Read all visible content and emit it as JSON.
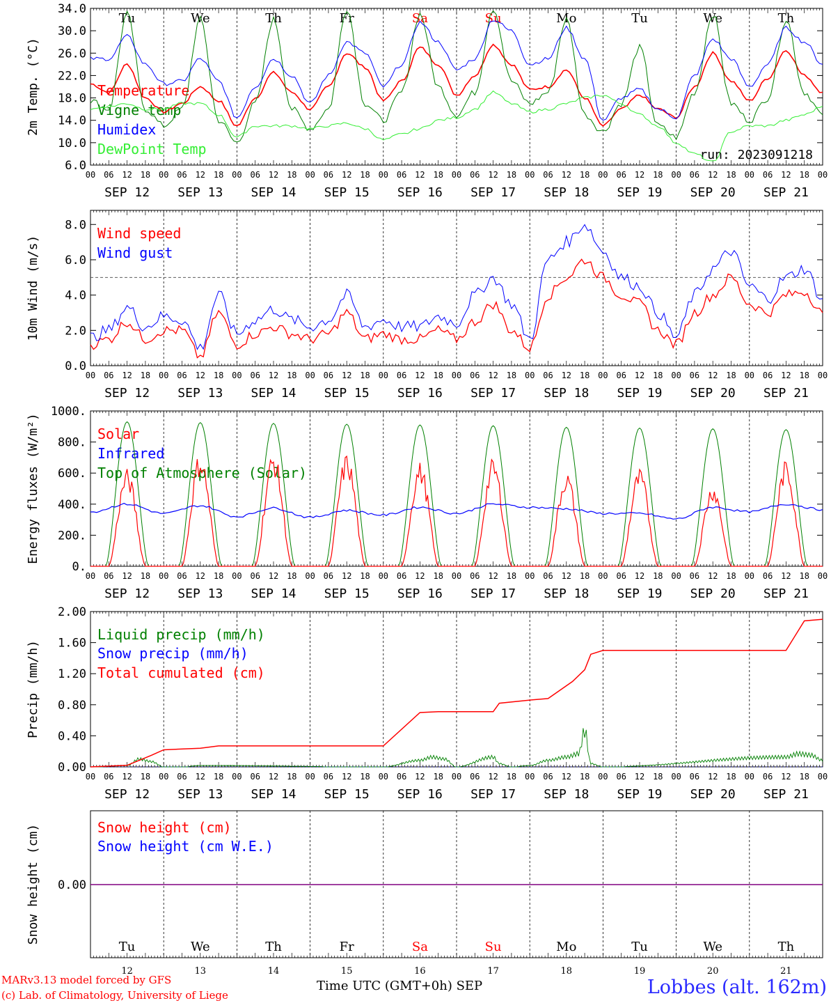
{
  "colors": {
    "red": "#ff0000",
    "green": "#008000",
    "blue": "#0000ff",
    "lightgreen": "#33ee33",
    "purple": "#800080",
    "weekend": "#ff0000"
  },
  "run_label": "run: 2023091218",
  "footer": {
    "credit1": "MARv3.13 model forced by GFS",
    "credit2": "(c) Lab. of Climatology, University of Liege",
    "xlabel": "Time UTC (GMT+0h) SEP",
    "station": "Lobbes (alt. 162m)"
  },
  "days": {
    "labels": [
      "SEP 12",
      "SEP 13",
      "SEP 14",
      "SEP 15",
      "SEP 16",
      "SEP 17",
      "SEP 18",
      "SEP 19",
      "SEP 20",
      "SEP 21"
    ],
    "weekday": [
      "Tu",
      "We",
      "Th",
      "Fr",
      "Sa",
      "Su",
      "Mo",
      "Tu",
      "We",
      "Th"
    ],
    "weekend": [
      false,
      false,
      false,
      false,
      true,
      true,
      false,
      false,
      false,
      false
    ],
    "numbers": [
      "12",
      "13",
      "14",
      "15",
      "16",
      "17",
      "18",
      "19",
      "20",
      "21"
    ],
    "hour_ticks": [
      "00",
      "06",
      "12",
      "18"
    ]
  },
  "chart_data": [
    {
      "type": "line",
      "ylabel": "2m Temp. (°C)",
      "ylim": [
        6,
        34
      ],
      "yticks": [
        "6.0",
        "10.0",
        "14.0",
        "18.0",
        "22.0",
        "26.0",
        "30.0",
        "34.0"
      ],
      "ytick_values": [
        6,
        10,
        14,
        18,
        22,
        26,
        30,
        34
      ],
      "x_unit": "hours since SEP 12 00 UTC",
      "series": [
        {
          "name": "Temperature",
          "color": "#ff0000",
          "x": [
            0,
            6,
            12,
            18,
            24,
            30,
            36,
            42,
            48,
            54,
            60,
            66,
            72,
            78,
            84,
            90,
            96,
            102,
            108,
            114,
            120,
            126,
            132,
            138,
            144,
            150,
            156,
            162,
            168,
            174,
            180,
            186,
            192,
            198,
            204,
            210,
            216,
            222,
            228,
            234,
            240
          ],
          "y": [
            20.5,
            19,
            24,
            18,
            15.5,
            17,
            20,
            17.5,
            13,
            18,
            22.5,
            19,
            16,
            20,
            26,
            23.5,
            17.5,
            21,
            27,
            24,
            18.5,
            22,
            27.5,
            24,
            19.5,
            20,
            23,
            18,
            13,
            16,
            18.5,
            16,
            14.5,
            20,
            26,
            21,
            17.5,
            21.5,
            26.5,
            22,
            19
          ]
        },
        {
          "name": "Vigne temp",
          "color": "#008000",
          "x": [
            0,
            6,
            12,
            18,
            24,
            30,
            36,
            42,
            48,
            54,
            60,
            66,
            72,
            78,
            84,
            90,
            96,
            102,
            108,
            114,
            120,
            126,
            132,
            138,
            144,
            150,
            156,
            162,
            168,
            174,
            180,
            186,
            192,
            198,
            204,
            210,
            216,
            222,
            228,
            234,
            240
          ],
          "y": [
            17.5,
            16,
            33,
            16,
            13,
            16,
            32,
            14,
            10,
            17,
            32,
            16,
            12.5,
            16,
            34,
            17,
            14,
            19,
            33,
            20,
            15,
            19,
            34,
            21,
            17,
            19,
            32,
            15,
            12,
            17,
            27,
            13,
            11,
            19,
            33,
            17,
            14,
            18,
            32,
            19,
            15
          ]
        },
        {
          "name": "Humidex",
          "color": "#0000ff",
          "x": [
            0,
            6,
            12,
            18,
            24,
            30,
            36,
            42,
            48,
            54,
            60,
            66,
            72,
            78,
            84,
            90,
            96,
            102,
            108,
            114,
            120,
            126,
            132,
            138,
            144,
            150,
            156,
            162,
            168,
            174,
            180,
            186,
            192,
            198,
            204,
            210,
            216,
            222,
            228,
            234,
            240
          ],
          "y": [
            25,
            25,
            29,
            24,
            20.5,
            21,
            25,
            21,
            14.5,
            20,
            25,
            22,
            17,
            22,
            28,
            26,
            20,
            24,
            31.5,
            28,
            23,
            25,
            32,
            30,
            24,
            25,
            30.5,
            25,
            14,
            18,
            19.5,
            16,
            14.5,
            22,
            28.5,
            25,
            20,
            24,
            30.5,
            28,
            24
          ]
        },
        {
          "name": "DewPoint Temp",
          "color": "#33ee33",
          "x": [
            0,
            6,
            12,
            18,
            24,
            30,
            36,
            42,
            48,
            54,
            60,
            66,
            72,
            78,
            84,
            90,
            96,
            102,
            108,
            114,
            120,
            126,
            132,
            138,
            144,
            150,
            156,
            162,
            168,
            174,
            180,
            186,
            192,
            198,
            204,
            210,
            216,
            222,
            228,
            234,
            240
          ],
          "y": [
            16,
            16.5,
            17,
            16,
            16,
            17,
            17,
            15,
            11,
            13,
            13,
            13,
            12.5,
            13,
            13.5,
            12.5,
            10.5,
            11.5,
            12.5,
            14,
            14.5,
            16,
            19,
            17,
            15.5,
            16,
            17,
            18,
            18.5,
            17,
            15,
            13,
            10,
            8,
            6.5,
            12,
            13,
            13,
            14,
            15,
            16.5
          ]
        }
      ]
    },
    {
      "type": "line",
      "ylabel": "10m Wind (m/s)",
      "ylim": [
        0,
        8.8
      ],
      "yticks": [
        "0.0",
        "2.0",
        "4.0",
        "6.0",
        "8.0"
      ],
      "ytick_values": [
        0,
        2,
        4,
        6,
        8
      ],
      "ref_line": 5,
      "x_unit": "hours since SEP 12 00 UTC",
      "series": [
        {
          "name": "Wind speed",
          "color": "#ff0000",
          "x": [
            0,
            6,
            12,
            18,
            24,
            30,
            36,
            42,
            48,
            54,
            60,
            66,
            72,
            78,
            84,
            90,
            96,
            102,
            108,
            114,
            120,
            126,
            132,
            138,
            144,
            150,
            156,
            162,
            168,
            174,
            180,
            186,
            192,
            198,
            204,
            210,
            216,
            222,
            228,
            234,
            240
          ],
          "y": [
            1.2,
            1.5,
            2.5,
            1.5,
            2.0,
            2.0,
            0.5,
            3.0,
            1.2,
            1.8,
            2.2,
            1.8,
            1.5,
            1.8,
            3.0,
            1.5,
            1.8,
            1.5,
            1.5,
            2.0,
            1.5,
            2.5,
            3.5,
            2.0,
            1.0,
            4.0,
            5.0,
            6.0,
            5.0,
            4.0,
            3.5,
            2.0,
            1.2,
            3.0,
            4.0,
            5.0,
            3.5,
            3.0,
            4.0,
            4.2,
            3.0
          ]
        },
        {
          "name": "Wind gust",
          "color": "#0000ff",
          "x": [
            0,
            6,
            12,
            18,
            24,
            30,
            36,
            42,
            48,
            54,
            60,
            66,
            72,
            78,
            84,
            90,
            96,
            102,
            108,
            114,
            120,
            126,
            132,
            138,
            144,
            150,
            156,
            162,
            168,
            174,
            180,
            186,
            192,
            198,
            204,
            210,
            216,
            222,
            228,
            234,
            240
          ],
          "y": [
            1.6,
            2.0,
            3.3,
            2.2,
            2.8,
            2.6,
            1.0,
            4.0,
            1.8,
            2.6,
            3.2,
            2.6,
            2.2,
            2.6,
            4.0,
            2.2,
            2.6,
            2.2,
            2.2,
            2.8,
            2.4,
            4.0,
            5.0,
            3.5,
            1.5,
            6.0,
            7.0,
            8.0,
            6.5,
            5.0,
            4.5,
            3.0,
            1.6,
            4.0,
            5.5,
            6.5,
            4.5,
            3.8,
            5.0,
            5.5,
            3.8
          ]
        }
      ]
    },
    {
      "type": "line",
      "ylabel": "Energy fluxes (W/m²)",
      "ylim": [
        0,
        1000
      ],
      "yticks": [
        "0.",
        "200.",
        "400.",
        "600.",
        "800.",
        "1000."
      ],
      "ytick_values": [
        0,
        200,
        400,
        600,
        800,
        1000
      ],
      "x_unit": "hours since SEP 12 00 UTC",
      "series": [
        {
          "name": "Solar",
          "color": "#ff0000",
          "daily_peaks": [
            560,
            660,
            660,
            650,
            600,
            620,
            550,
            560,
            480,
            610
          ]
        },
        {
          "name": "Infrared",
          "color": "#0000ff",
          "x": [
            0,
            12,
            24,
            36,
            48,
            60,
            72,
            84,
            96,
            108,
            120,
            132,
            144,
            156,
            168,
            180,
            192,
            204,
            216,
            228,
            240
          ],
          "y": [
            350,
            400,
            340,
            390,
            320,
            375,
            315,
            360,
            330,
            380,
            340,
            400,
            380,
            370,
            340,
            340,
            305,
            380,
            350,
            400,
            365
          ]
        },
        {
          "name": "Top of Atmosphere (Solar)",
          "color": "#008000",
          "daily_peaks": [
            930,
            925,
            920,
            915,
            910,
            905,
            895,
            890,
            885,
            880
          ]
        }
      ]
    },
    {
      "type": "line",
      "ylabel": "Precip (mm/h)",
      "ylim": [
        0,
        2.0
      ],
      "yticks": [
        "0.00",
        "0.40",
        "0.80",
        "1.20",
        "1.60",
        "2.00"
      ],
      "ytick_values": [
        0,
        0.4,
        0.8,
        1.2,
        1.6,
        2.0
      ],
      "x_unit": "hours since SEP 12 00 UTC",
      "series": [
        {
          "name": "Liquid precip (mm/h)",
          "color": "#008000",
          "x": [
            0,
            12,
            16,
            20,
            24,
            30,
            36,
            96,
            108,
            112,
            116,
            120,
            132,
            134,
            138,
            144,
            150,
            156,
            160,
            162,
            164,
            168,
            228,
            232,
            236,
            240
          ],
          "y": [
            0,
            0.02,
            0.12,
            0.08,
            0,
            0,
            0.02,
            0,
            0.1,
            0.15,
            0.12,
            0,
            0.15,
            0.05,
            0,
            0.02,
            0.1,
            0.15,
            0.2,
            0.55,
            0.05,
            0,
            0.15,
            0.2,
            0.18,
            0.1
          ]
        },
        {
          "name": "Snow precip (mm/h)",
          "color": "#0000ff",
          "x": [
            0,
            240
          ],
          "y": [
            0,
            0
          ]
        },
        {
          "name": "Total cumulated (cm)",
          "color": "#ff0000",
          "x": [
            0,
            12,
            20,
            24,
            36,
            42,
            96,
            108,
            114,
            132,
            134,
            144,
            150,
            158,
            162,
            164,
            168,
            228,
            234,
            240
          ],
          "y": [
            0,
            0.02,
            0.15,
            0.22,
            0.24,
            0.27,
            0.27,
            0.7,
            0.71,
            0.71,
            0.82,
            0.86,
            0.88,
            1.1,
            1.25,
            1.45,
            1.5,
            1.5,
            1.88,
            1.9
          ]
        }
      ]
    },
    {
      "type": "line",
      "ylabel": "Snow height (cm)",
      "yticks": [
        "0.00"
      ],
      "x_unit": "hours since SEP 12 00 UTC",
      "series": [
        {
          "name": "Snow height (cm)",
          "color": "#ff0000",
          "x": [
            0,
            240
          ],
          "y": [
            0,
            0
          ]
        },
        {
          "name": "Snow height (cm W.E.)",
          "color": "#0000ff",
          "x": [
            0,
            240
          ],
          "y": [
            0,
            0
          ]
        }
      ]
    }
  ]
}
